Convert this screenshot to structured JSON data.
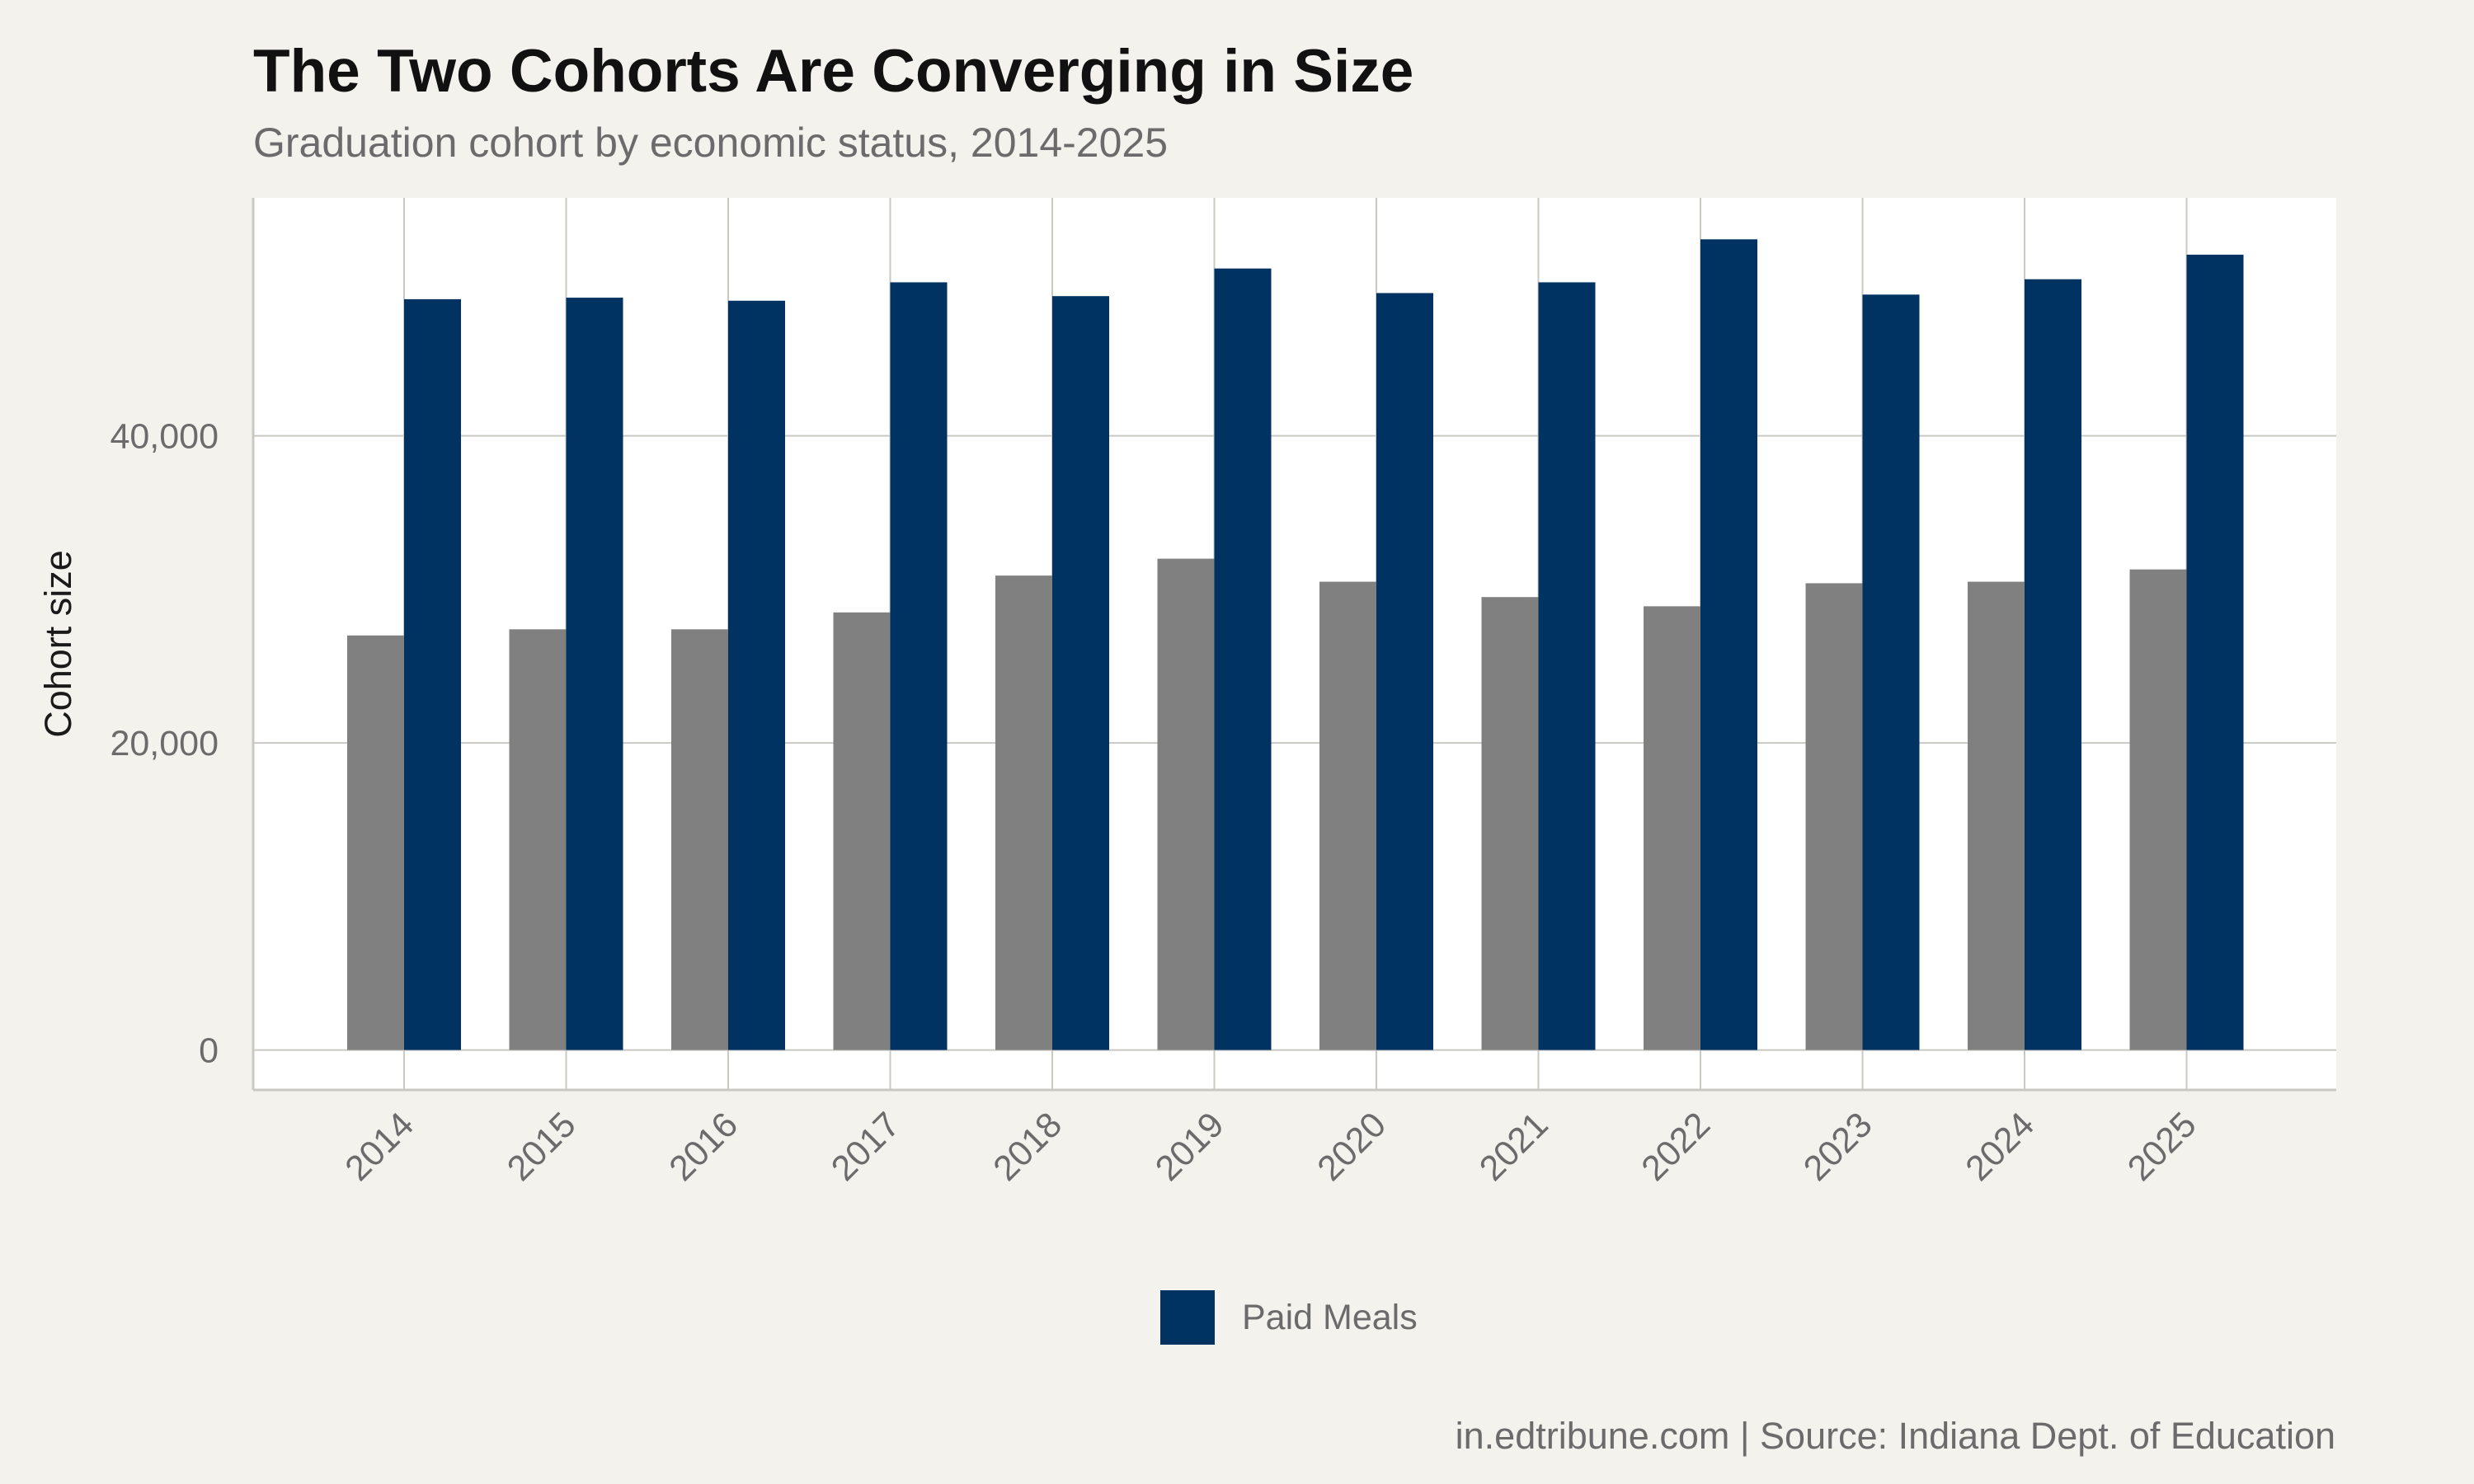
{
  "chart_data": {
    "type": "bar",
    "title": "The Two Cohorts Are Converging in Size",
    "subtitle": "Graduation cohort by economic status, 2014-2025",
    "caption": "in.edtribune.com | Source: Indiana Dept. of Education",
    "xlabel": "",
    "ylabel": "Cohort size",
    "ylim": [
      -2600,
      55500
    ],
    "yticks": [
      0,
      20000,
      40000
    ],
    "ytick_labels": [
      "0",
      "20,000",
      "40,000"
    ],
    "categories": [
      "2014",
      "2015",
      "2016",
      "2017",
      "2018",
      "2019",
      "2020",
      "2021",
      "2022",
      "2023",
      "2024",
      "2025"
    ],
    "series": [
      {
        "color": "#808080",
        "values": [
          27000,
          27400,
          27400,
          28500,
          30900,
          32000,
          30500,
          29500,
          28900,
          30400,
          30500,
          31300
        ]
      },
      {
        "name": "Paid Meals",
        "color": "#003262",
        "values": [
          48900,
          49000,
          48800,
          50000,
          49100,
          50900,
          49300,
          50000,
          52800,
          49200,
          50200,
          51800
        ]
      }
    ],
    "legend": {
      "position": "bottom",
      "entries": [
        "Paid Meals"
      ]
    },
    "grid": true,
    "colors": {
      "background": "#f4f2ed",
      "panel": "#ffffff",
      "grid": "#c9c8c2"
    }
  }
}
